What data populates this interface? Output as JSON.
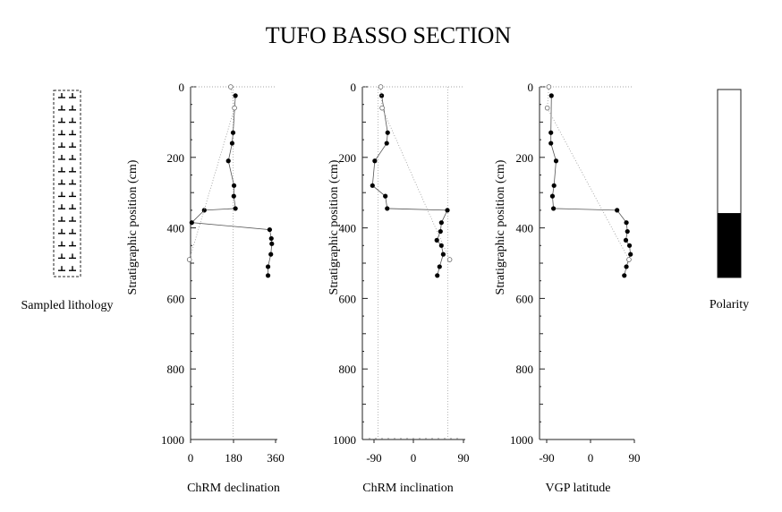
{
  "figure": {
    "title": "TUFO BASSO SECTION",
    "lithology_label": "Sampled lithology",
    "polarity_label": "Polarity"
  },
  "chart_data": [
    {
      "type": "scatter",
      "ylabel": "Stratigraphic  position  (cm)",
      "xlabel": "ChRM declination",
      "xlim": [
        0,
        360
      ],
      "xticks": [
        "0",
        "180",
        "360"
      ],
      "ylim": [
        0,
        1000
      ],
      "yticks": [
        "0",
        "200",
        "400",
        "600",
        "800",
        "1000"
      ],
      "y_inverted": true,
      "reference_line_x": 180,
      "series": [
        {
          "marker": "filled",
          "connected": true,
          "points": [
            [
              190,
              25
            ],
            [
              180,
              130
            ],
            [
              176,
              160
            ],
            [
              160,
              210
            ],
            [
              184,
              280
            ],
            [
              183,
              310
            ],
            [
              190,
              345
            ],
            [
              58,
              350
            ],
            [
              5,
              385
            ],
            [
              335,
              405
            ],
            [
              342,
              430
            ],
            [
              344,
              445
            ],
            [
              340,
              475
            ],
            [
              328,
              510
            ],
            [
              328,
              535
            ]
          ]
        },
        {
          "marker": "open",
          "connected": true,
          "points": [
            [
              170,
              0
            ],
            [
              186,
              60
            ],
            [
              -5,
              490
            ]
          ]
        }
      ]
    },
    {
      "type": "scatter",
      "ylabel": "Stratigraphic  position  (cm)",
      "xlabel": "ChRM inclination",
      "xlim": [
        -110,
        110
      ],
      "xticks": [
        "-90",
        "0",
        "90"
      ],
      "ylim": [
        0,
        1000
      ],
      "yticks": [
        "0",
        "200",
        "400",
        "600",
        "800",
        "1000"
      ],
      "y_inverted": true,
      "reference_lines_x": [
        -76,
        76
      ],
      "series": [
        {
          "marker": "filled",
          "connected": true,
          "points": [
            [
              -68,
              25
            ],
            [
              -55,
              130
            ],
            [
              -57,
              160
            ],
            [
              -83,
              210
            ],
            [
              -88,
              280
            ],
            [
              -60,
              310
            ],
            [
              -56,
              345
            ],
            [
              75,
              350
            ],
            [
              62,
              385
            ],
            [
              60,
              410
            ],
            [
              52,
              435
            ],
            [
              62,
              450
            ],
            [
              66,
              475
            ],
            [
              58,
              510
            ],
            [
              53,
              535
            ]
          ]
        },
        {
          "marker": "open",
          "connected": true,
          "points": [
            [
              -70,
              0
            ],
            [
              -67,
              60
            ],
            [
              80,
              490
            ]
          ]
        }
      ]
    },
    {
      "type": "scatter",
      "ylabel": "Stratigraphic  position  (cm)",
      "xlabel": "VGP latitude",
      "xlim": [
        -100,
        80
      ],
      "xticks": [
        "-90",
        "0",
        "90"
      ],
      "ylim": [
        0,
        1000
      ],
      "yticks": [
        "0",
        "200",
        "400",
        "600",
        "800",
        "1000"
      ],
      "y_inverted": true,
      "series": [
        {
          "marker": "filled",
          "connected": true,
          "points": [
            [
              -77,
              25
            ],
            [
              -78,
              130
            ],
            [
              -78,
              160
            ],
            [
              -68,
              210
            ],
            [
              -72,
              280
            ],
            [
              -75,
              310
            ],
            [
              -73,
              345
            ],
            [
              50,
              350
            ],
            [
              68,
              385
            ],
            [
              70,
              410
            ],
            [
              67,
              435
            ],
            [
              74,
              450
            ],
            [
              76,
              475
            ],
            [
              68,
              510
            ],
            [
              64,
              535
            ]
          ]
        },
        {
          "marker": "open",
          "connected": true,
          "points": [
            [
              -82,
              0
            ],
            [
              -85,
              60
            ],
            [
              73,
              490
            ]
          ]
        }
      ]
    }
  ],
  "polarity": [
    {
      "top": 0,
      "bottom": 355,
      "state": "normal"
    },
    {
      "top": 355,
      "bottom": 540,
      "state": "reversed"
    }
  ]
}
